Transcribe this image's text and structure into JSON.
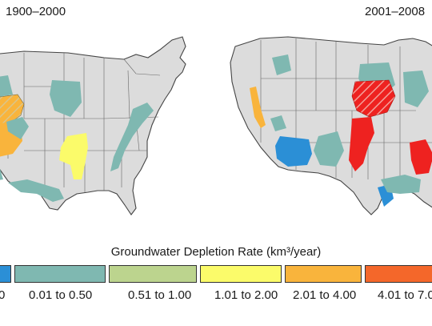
{
  "panels": {
    "left_title": "1900–2000",
    "right_title": "2001–2008"
  },
  "legend": {
    "title": "Groundwater Depletion Rate (km³/year)",
    "classes": [
      {
        "label": "0",
        "color": "#2b8fd6"
      },
      {
        "label": "0.01 to 0.50",
        "color": "#7fb8b1"
      },
      {
        "label": "0.51 to 1.00",
        "color": "#bcd48e"
      },
      {
        "label": "1.01 to 2.00",
        "color": "#fbfb6a"
      },
      {
        "label": "2.01 to 4.00",
        "color": "#f9b43c"
      },
      {
        "label": "4.01 to 7.0",
        "color": "#f4672a"
      }
    ]
  },
  "colors": {
    "land": "#dcdcdc",
    "state_border": "#666666",
    "hatch": "#ffffff",
    "red": "#ee2220"
  }
}
